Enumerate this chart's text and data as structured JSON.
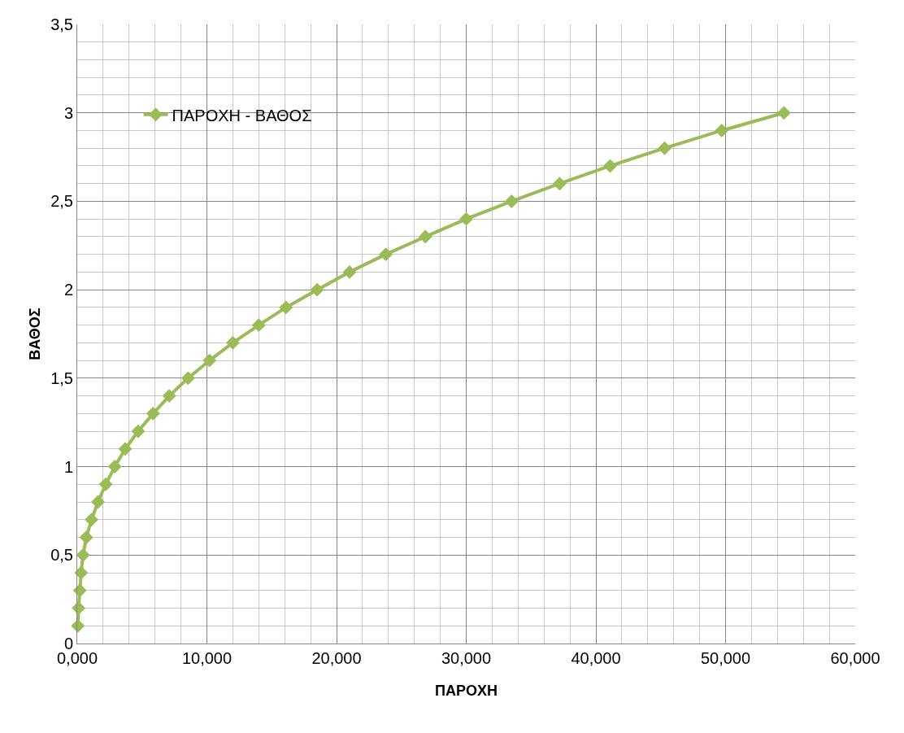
{
  "chart_data": {
    "type": "line",
    "xlabel": "ΠΑΡΟΧΗ",
    "ylabel": "ΒΑΘΟΣ",
    "series": [
      {
        "name": "ΠΑΡΟΧΗ - ΒΑΘΟΣ",
        "color": "#9bbb59",
        "x": [
          0.05,
          0.1,
          0.2,
          0.3,
          0.45,
          0.7,
          1.1,
          1.6,
          2.2,
          2.9,
          3.7,
          4.7,
          5.85,
          7.1,
          8.55,
          10.2,
          12.0,
          14.0,
          16.1,
          18.5,
          21.0,
          23.8,
          26.85,
          30.0,
          33.5,
          37.2,
          41.1,
          45.3,
          49.7,
          54.5
        ],
        "values": [
          0.1,
          0.2,
          0.3,
          0.4,
          0.5,
          0.6,
          0.7,
          0.8,
          0.9,
          1.0,
          1.1,
          1.2,
          1.3,
          1.4,
          1.5,
          1.6,
          1.7,
          1.8,
          1.9,
          2.0,
          2.1,
          2.2,
          2.3,
          2.4,
          2.5,
          2.6,
          2.7,
          2.8,
          2.9,
          3.0
        ]
      }
    ],
    "xlim": [
      0,
      60
    ],
    "xticks": [
      {
        "value": 0,
        "label": "0,000"
      },
      {
        "value": 10,
        "label": "10,000"
      },
      {
        "value": 20,
        "label": "20,000"
      },
      {
        "value": 30,
        "label": "30,000"
      },
      {
        "value": 40,
        "label": "40,000"
      },
      {
        "value": 50,
        "label": "50,000"
      },
      {
        "value": 60,
        "label": "60,000"
      }
    ],
    "ylim": [
      0,
      3.5
    ],
    "yticks": [
      0,
      {
        "value": 0.5,
        "label": "0,5"
      },
      1,
      {
        "value": 1.5,
        "label": "1,5"
      },
      2,
      {
        "value": 2.5,
        "label": "2,5"
      },
      3,
      {
        "value": 3.5,
        "label": "3,5"
      }
    ],
    "grid": true,
    "legend": "top left",
    "marker": "diamond",
    "line_style": "solid"
  }
}
